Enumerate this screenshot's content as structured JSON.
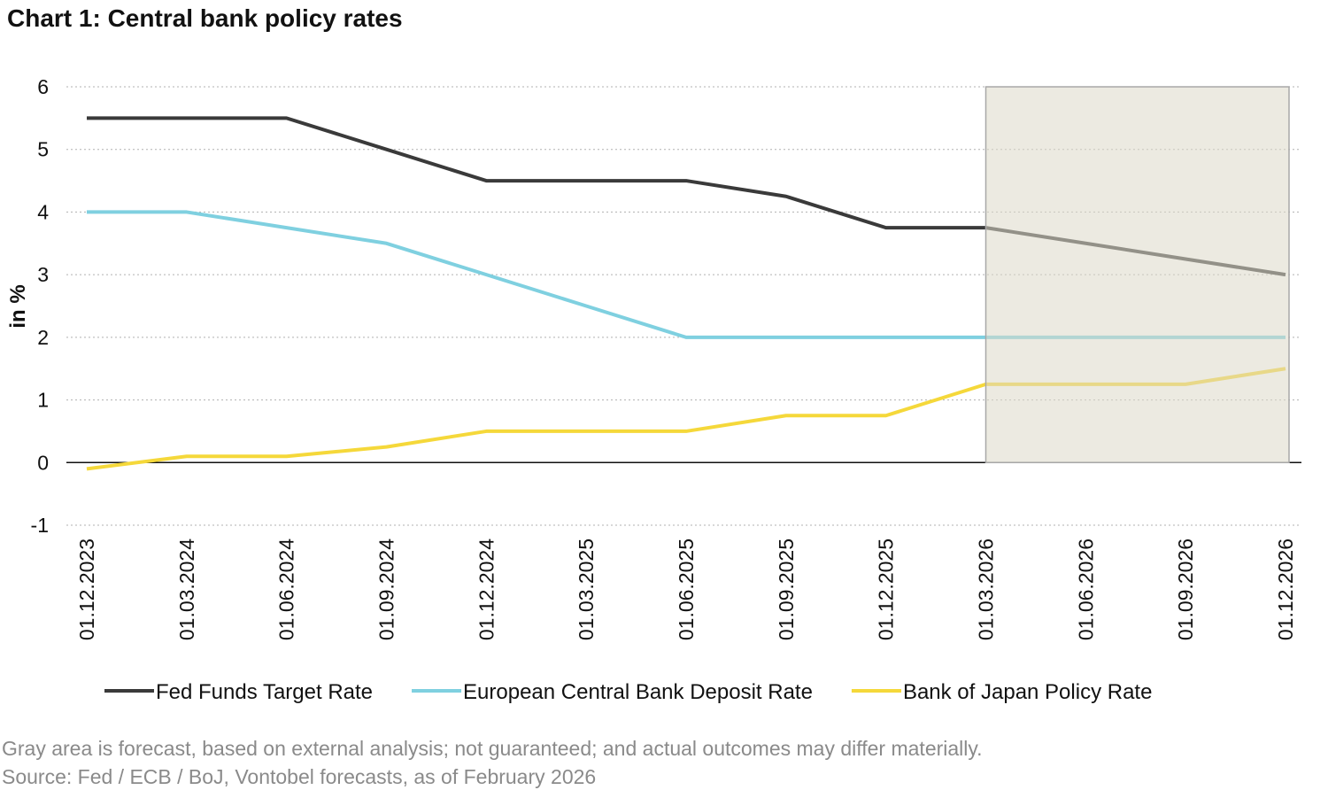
{
  "chart_data": {
    "type": "line",
    "title": "Chart 1: Central bank policy rates",
    "y_label": "in %",
    "categories": [
      "01.12.2023",
      "01.03.2024",
      "01.06.2024",
      "01.09.2024",
      "01.12.2024",
      "01.03.2025",
      "01.06.2025",
      "01.09.2025",
      "01.12.2025",
      "01.03.2026",
      "01.06.2026",
      "01.09.2026",
      "01.12.2026"
    ],
    "series": [
      {
        "name": "Fed Funds Target Rate",
        "color": "#3a3a3a",
        "values": [
          5.5,
          5.5,
          5.5,
          5.0,
          4.5,
          4.5,
          4.5,
          4.25,
          3.75,
          3.75,
          3.5,
          3.25,
          3.0
        ]
      },
      {
        "name": "European Central Bank Deposit Rate",
        "color": "#7fd0e0",
        "values": [
          4,
          4,
          3.75,
          3.5,
          3.0,
          2.5,
          2.0,
          2,
          2,
          2,
          2,
          2,
          2
        ]
      },
      {
        "name": "Bank of Japan Policy Rate",
        "color": "#f5d83a",
        "values": [
          -0.1,
          0.1,
          0.1,
          0.25,
          0.5,
          0.5,
          0.5,
          0.75,
          0.75,
          1.25,
          1.25,
          1.25,
          1.5
        ]
      }
    ],
    "forecast_from": "01.03.2026",
    "ylim": [
      -1,
      6
    ],
    "yticks": [
      -1,
      0,
      1,
      2,
      3,
      4,
      5,
      6
    ],
    "grid": true,
    "notes": [
      "Gray area is forecast, based on external analysis; not guaranteed; and actual outcomes may differ materially.",
      "Source: Fed / ECB / BoJ, Vontobel forecasts, as of February 2026"
    ]
  }
}
